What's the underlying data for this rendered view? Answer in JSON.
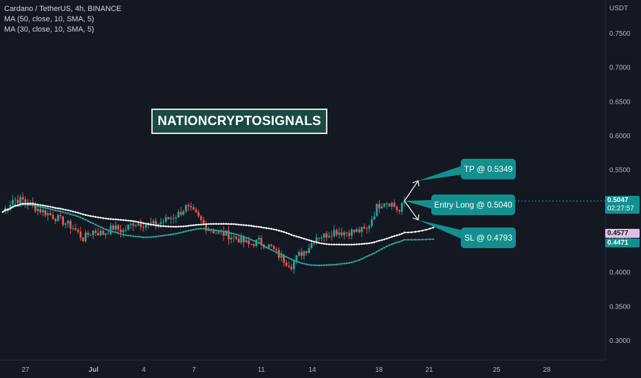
{
  "header": {
    "symbol_line": "Cardano / TetherUS, 4h, BINANCE",
    "ma1": "MA (50, close, 10, SMA, 5)",
    "ma2": "MA (30, close, 10, SMA, 5)"
  },
  "watermark": "NATIONCRYPTOSIGNALS",
  "callouts": {
    "tp": "TP @ 0.5349",
    "entry": "Entry Long @ 0.5040",
    "sl": "SL @ 0.4793"
  },
  "price_tags": {
    "last_price": "0.5047",
    "countdown": "02:27:57",
    "ma50_value": "0.4577",
    "ma30_value": "0.4471"
  },
  "colors": {
    "background": "#141823",
    "up": "#26a69a",
    "down": "#ef5350",
    "ma50": "#ffffff",
    "ma30": "#26a69a",
    "callout": "#138f8e",
    "ma50_tag": "#e1bee7"
  },
  "chart_data": {
    "type": "candlestick",
    "axis_unit": "USDT",
    "y_ticks": [
      "0.7500",
      "0.7000",
      "0.6500",
      "0.6000",
      "0.5500",
      "0.5000",
      "0.4500",
      "0.4000",
      "0.3500",
      "0.3000"
    ],
    "x_ticks": [
      "27",
      "Jul",
      "4",
      "7",
      "11",
      "14",
      "18",
      "21",
      "25",
      "28"
    ],
    "ylim": [
      0.28,
      0.79
    ],
    "close_path": [
      [
        0,
        0.488
      ],
      [
        4,
        0.506
      ],
      [
        8,
        0.505
      ],
      [
        12,
        0.496
      ],
      [
        17,
        0.487
      ],
      [
        22,
        0.478
      ],
      [
        28,
        0.465
      ],
      [
        32,
        0.449
      ],
      [
        36,
        0.46
      ],
      [
        40,
        0.456
      ],
      [
        44,
        0.465
      ],
      [
        48,
        0.46
      ],
      [
        52,
        0.472
      ],
      [
        57,
        0.47
      ],
      [
        61,
        0.469
      ],
      [
        66,
        0.478
      ],
      [
        70,
        0.485
      ],
      [
        73,
        0.495
      ],
      [
        77,
        0.483
      ],
      [
        81,
        0.466
      ],
      [
        85,
        0.458
      ],
      [
        89,
        0.455
      ],
      [
        94,
        0.448
      ],
      [
        98,
        0.44
      ],
      [
        102,
        0.445
      ],
      [
        107,
        0.436
      ],
      [
        111,
        0.42
      ],
      [
        115,
        0.41
      ],
      [
        118,
        0.425
      ],
      [
        121,
        0.433
      ],
      [
        125,
        0.452
      ],
      [
        128,
        0.453
      ],
      [
        132,
        0.46
      ],
      [
        136,
        0.458
      ],
      [
        140,
        0.459
      ],
      [
        145,
        0.462
      ],
      [
        149,
        0.495
      ],
      [
        152,
        0.504
      ],
      [
        155,
        0.5
      ],
      [
        158,
        0.488
      ],
      [
        160,
        0.5047
      ]
    ],
    "bars": 160,
    "bars_per_day": 6,
    "ma50_end": 0.4577,
    "ma30_end": 0.4471,
    "ma50_projection_end": 0.465,
    "ma30_projection_end": 0.448,
    "trade_setup": {
      "entry": 0.504,
      "take_profit": 0.5349,
      "stop_loss": 0.4793
    }
  }
}
